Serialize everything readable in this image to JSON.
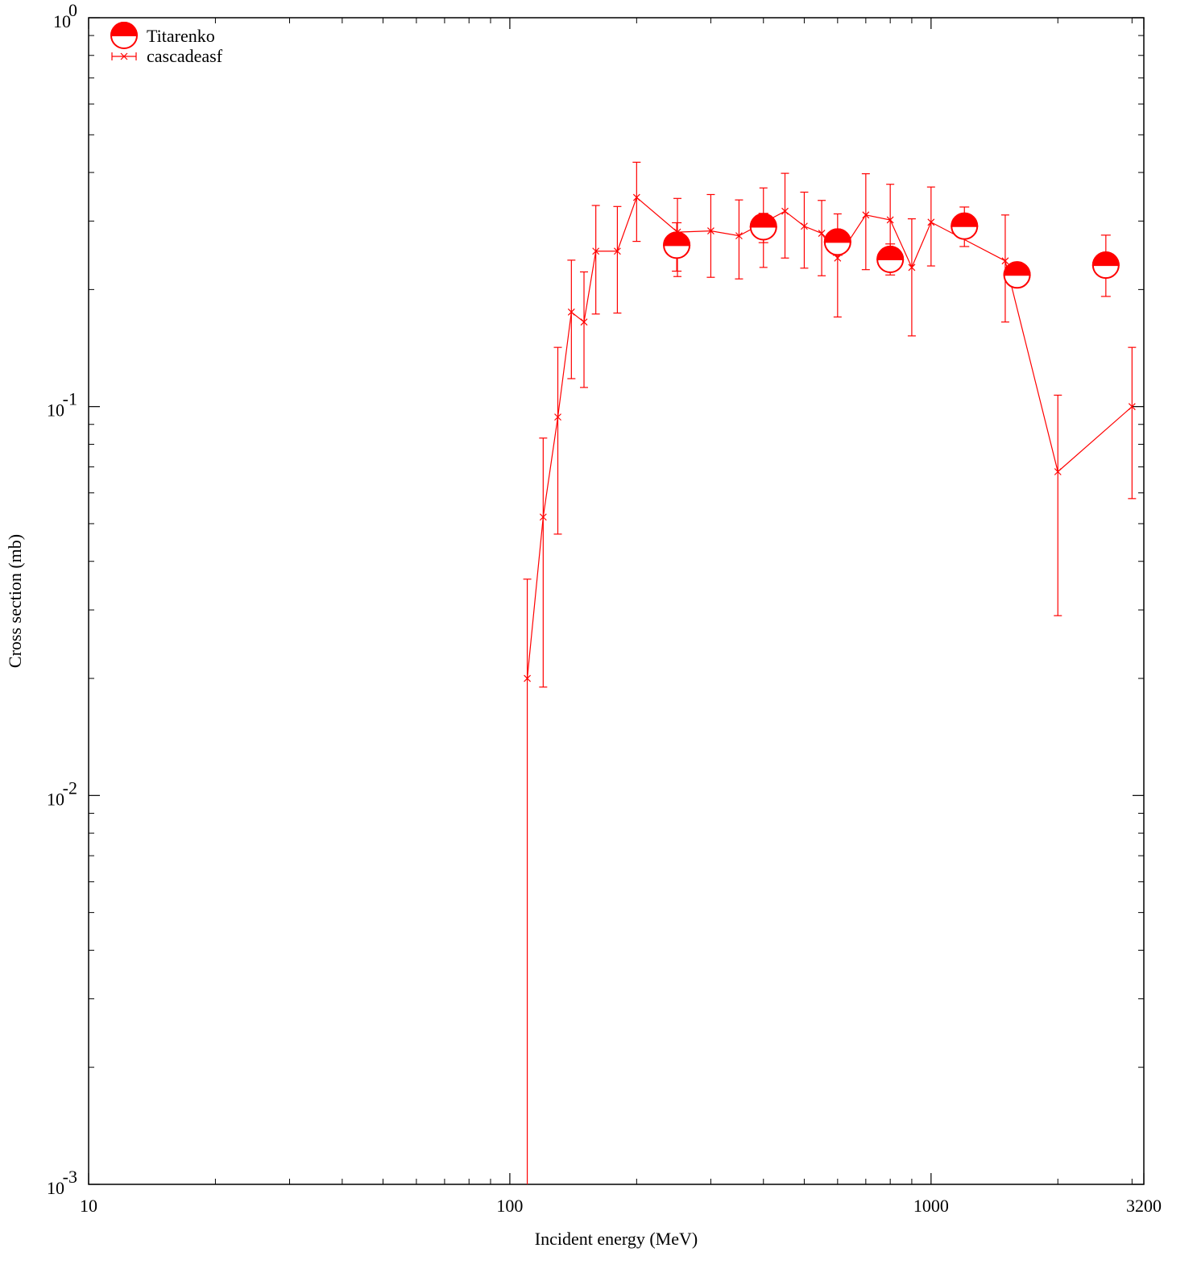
{
  "chart_data": {
    "type": "scatter",
    "title": "",
    "xlabel": "Incident energy (MeV)",
    "ylabel": "Cross section (mb)",
    "xscale": "log",
    "yscale": "log",
    "xlim": [
      10,
      3200
    ],
    "ylim": [
      0.001,
      1
    ],
    "grid": false,
    "legend_position": "top-left",
    "x_ticks": [
      {
        "value": 10,
        "label": "10"
      },
      {
        "value": 100,
        "label": "100"
      },
      {
        "value": 1000,
        "label": "1000"
      },
      {
        "value": 3200,
        "label": "3200"
      }
    ],
    "y_ticks": [
      {
        "value": 0.001,
        "base": "10",
        "exp": "-3"
      },
      {
        "value": 0.01,
        "base": "10",
        "exp": "-2"
      },
      {
        "value": 0.1,
        "base": "10",
        "exp": "-1"
      },
      {
        "value": 1,
        "base": "10",
        "exp": "0"
      }
    ],
    "series": [
      {
        "name": "Titarenko",
        "style": "half-filled-circle",
        "color": "#ff0000",
        "points": [
          {
            "x": 249,
            "y": 0.26,
            "yerr_low": 0.223,
            "yerr_high": 0.297
          },
          {
            "x": 400,
            "y": 0.29,
            "yerr_low": 0.264,
            "yerr_high": 0.314
          },
          {
            "x": 600,
            "y": 0.265,
            "yerr_low": 0.245,
            "yerr_high": 0.285
          },
          {
            "x": 800,
            "y": 0.239,
            "yerr_low": 0.218,
            "yerr_high": 0.262
          },
          {
            "x": 1200,
            "y": 0.291,
            "yerr_low": 0.258,
            "yerr_high": 0.326
          },
          {
            "x": 1600,
            "y": 0.218,
            "yerr_low": 0.203,
            "yerr_high": 0.235
          },
          {
            "x": 2600,
            "y": 0.231,
            "yerr_low": 0.192,
            "yerr_high": 0.276
          }
        ]
      },
      {
        "name": "cascadeasf",
        "style": "cross-line",
        "color": "#ff0000",
        "points": [
          {
            "x": 110,
            "y": 0.02,
            "yerr_low": 0.001,
            "yerr_high": 0.036
          },
          {
            "x": 120,
            "y": 0.052,
            "yerr_low": 0.019,
            "yerr_high": 0.083
          },
          {
            "x": 130,
            "y": 0.094,
            "yerr_low": 0.047,
            "yerr_high": 0.142
          },
          {
            "x": 140,
            "y": 0.175,
            "yerr_low": 0.118,
            "yerr_high": 0.238
          },
          {
            "x": 150,
            "y": 0.165,
            "yerr_low": 0.112,
            "yerr_high": 0.222
          },
          {
            "x": 160,
            "y": 0.251,
            "yerr_low": 0.173,
            "yerr_high": 0.329
          },
          {
            "x": 180,
            "y": 0.251,
            "yerr_low": 0.174,
            "yerr_high": 0.327
          },
          {
            "x": 200,
            "y": 0.345,
            "yerr_low": 0.266,
            "yerr_high": 0.425
          },
          {
            "x": 250,
            "y": 0.281,
            "yerr_low": 0.216,
            "yerr_high": 0.343
          },
          {
            "x": 300,
            "y": 0.283,
            "yerr_low": 0.215,
            "yerr_high": 0.351
          },
          {
            "x": 350,
            "y": 0.275,
            "yerr_low": 0.213,
            "yerr_high": 0.34
          },
          {
            "x": 400,
            "y": 0.297,
            "yerr_low": 0.228,
            "yerr_high": 0.365
          },
          {
            "x": 450,
            "y": 0.318,
            "yerr_low": 0.241,
            "yerr_high": 0.398
          },
          {
            "x": 500,
            "y": 0.291,
            "yerr_low": 0.227,
            "yerr_high": 0.356
          },
          {
            "x": 550,
            "y": 0.279,
            "yerr_low": 0.217,
            "yerr_high": 0.339
          },
          {
            "x": 600,
            "y": 0.241,
            "yerr_low": 0.17,
            "yerr_high": 0.313
          },
          {
            "x": 700,
            "y": 0.311,
            "yerr_low": 0.225,
            "yerr_high": 0.397
          },
          {
            "x": 800,
            "y": 0.302,
            "yerr_low": 0.231,
            "yerr_high": 0.373
          },
          {
            "x": 900,
            "y": 0.228,
            "yerr_low": 0.152,
            "yerr_high": 0.304
          },
          {
            "x": 1000,
            "y": 0.298,
            "yerr_low": 0.23,
            "yerr_high": 0.367
          },
          {
            "x": 1500,
            "y": 0.237,
            "yerr_low": 0.165,
            "yerr_high": 0.311
          },
          {
            "x": 2000,
            "y": 0.068,
            "yerr_low": 0.029,
            "yerr_high": 0.107
          },
          {
            "x": 3000,
            "y": 0.1,
            "yerr_low": 0.058,
            "yerr_high": 0.142
          }
        ]
      }
    ]
  }
}
